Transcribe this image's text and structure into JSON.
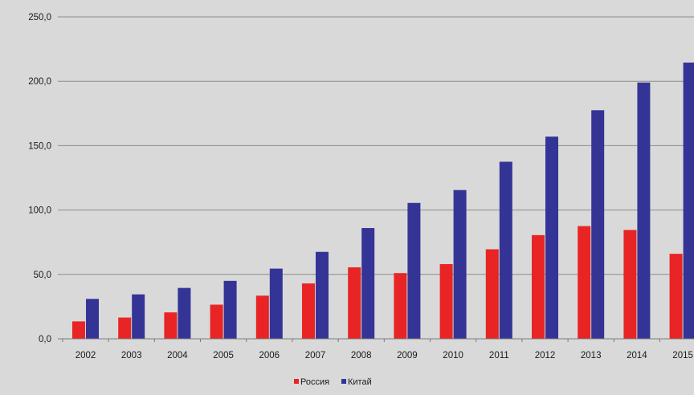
{
  "chart_data": {
    "type": "bar",
    "title": "",
    "xlabel": "",
    "ylabel": "",
    "categories": [
      "2002",
      "2003",
      "2004",
      "2005",
      "2006",
      "2007",
      "2008",
      "2009",
      "2010",
      "2011",
      "2012",
      "2013",
      "2014",
      "2015"
    ],
    "ylim": [
      0,
      250
    ],
    "yticks": [
      "0,0",
      "50,0",
      "100,0",
      "150,0",
      "200,0",
      "250,0"
    ],
    "grid": true,
    "legend_position": "bottom",
    "series": [
      {
        "name": "Россия",
        "color": "#e82424",
        "values": [
          13.5,
          16.5,
          20.5,
          26.5,
          33.5,
          43.0,
          55.5,
          51.0,
          58.0,
          69.5,
          80.5,
          87.5,
          84.5,
          66.0
        ]
      },
      {
        "name": "Китай",
        "color": "#343496",
        "values": [
          31.0,
          34.5,
          39.5,
          45.0,
          54.5,
          67.5,
          86.0,
          105.5,
          115.5,
          137.5,
          157.0,
          177.5,
          199.0,
          214.5
        ]
      }
    ]
  }
}
